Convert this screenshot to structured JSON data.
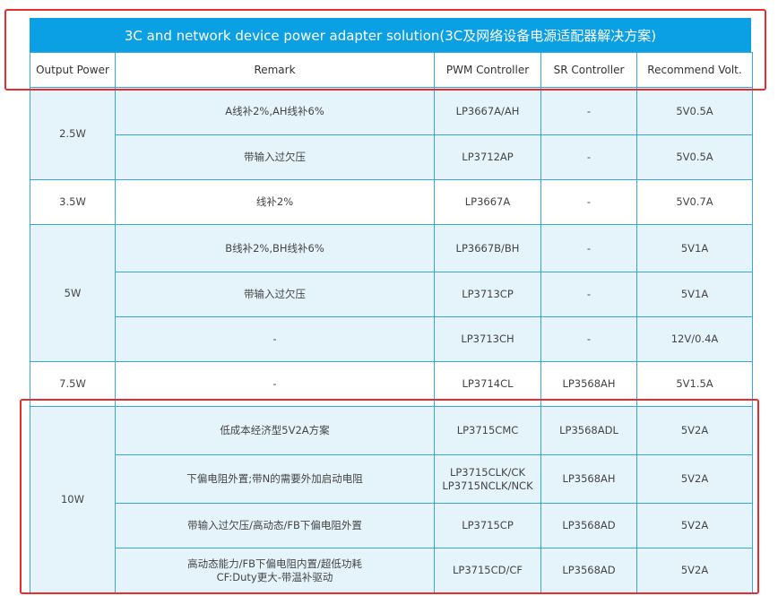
{
  "title": "3C and network device power adapter solution(3C及网络设备电源适配器解决方案)",
  "headers": [
    "Output Power",
    "Remark",
    "PWM Controller",
    "SR Controller",
    "Recommend Volt."
  ],
  "groups": [
    {
      "power": "2.5W",
      "rows": [
        {
          "remark": "A线补2%,AH线补6%",
          "pwm": "LP3667A/AH",
          "sr": "-",
          "volt": "5V0.5A"
        },
        {
          "remark": "带输入过欠压",
          "pwm": "LP3712AP",
          "sr": "-",
          "volt": "5V0.5A"
        }
      ]
    },
    {
      "power": "3.5W",
      "rows": [
        {
          "remark": "线补2%",
          "pwm": "LP3667A",
          "sr": "-",
          "volt": "5V0.7A"
        }
      ]
    },
    {
      "power": "5W",
      "rows": [
        {
          "remark": "B线补2%,BH线补6%",
          "pwm": "LP3667B/BH",
          "sr": "-",
          "volt": "5V1A"
        },
        {
          "remark": "带输入过欠压",
          "pwm": "LP3713CP",
          "sr": "-",
          "volt": "5V1A"
        },
        {
          "remark": "-",
          "pwm": "LP3713CH",
          "sr": "-",
          "volt": "12V/0.4A"
        }
      ]
    },
    {
      "power": "7.5W",
      "rows": [
        {
          "remark": "-",
          "pwm": "LP3714CL",
          "sr": "LP3568AH",
          "volt": "5V1.5A"
        }
      ]
    },
    {
      "power": "10W",
      "rows": [
        {
          "remark": "低成本经济型5V2A方案",
          "pwm": "LP3715CMC",
          "sr": "LP3568ADL",
          "volt": "5V2A"
        },
        {
          "remark": "下偏电阻外置;带N的需要外加启动电阻",
          "pwm": "LP3715CLK/CK",
          "pwm2": "LP3715NCLK/NCK",
          "sr": "LP3568AH",
          "volt": "5V2A"
        },
        {
          "remark": "带输入过欠压/高动态/FB下偏电阻外置",
          "pwm": "LP3715CP",
          "sr": "LP3568AD",
          "volt": "5V2A"
        },
        {
          "remark": "高动态能力/FB下偏电阻内置/超低功耗",
          "remark2": "CF:Duty更大-带温补驱动",
          "pwm": "LP3715CD/CF",
          "sr": "LP3568AD",
          "volt": "5V2A"
        }
      ]
    }
  ],
  "colors": {
    "header_blue": "#0b9fe3",
    "row_fill": "#e5f4fb",
    "border": "#3aa6de",
    "highlight": "#e62e2e"
  }
}
